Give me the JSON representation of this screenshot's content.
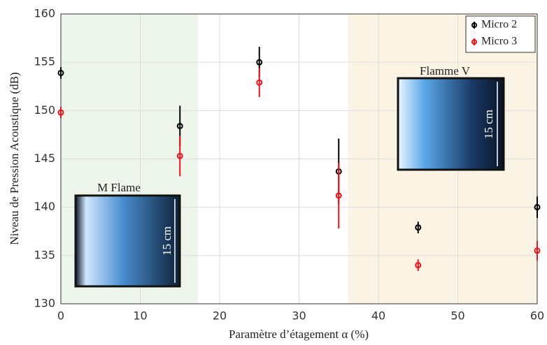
{
  "chart_data": {
    "type": "errorbar",
    "xlabel": "Paramètre d’étagement α (%)",
    "ylabel": "Niveau de Pression Acoustique (dB)",
    "x": [
      0,
      15,
      25,
      35,
      45,
      60
    ],
    "series": [
      {
        "name": "Micro 2",
        "color": "#000000",
        "values": [
          153.9,
          148.4,
          155.0,
          143.7,
          137.9,
          140.0
        ],
        "errors": [
          0.6,
          2.1,
          1.6,
          3.4,
          0.6,
          1.1
        ]
      },
      {
        "name": "Micro 3",
        "color": "#e8141b",
        "values": [
          149.8,
          145.3,
          152.9,
          141.2,
          134.0,
          135.5
        ],
        "errors": [
          0.6,
          2.1,
          1.5,
          3.4,
          0.6,
          1.0
        ]
      }
    ],
    "xlim": [
      0,
      60
    ],
    "ylim": [
      130,
      160
    ],
    "xticks": [
      0,
      10,
      20,
      30,
      40,
      50,
      60
    ],
    "yticks": [
      130,
      135,
      140,
      145,
      150,
      155,
      160
    ],
    "grid": true,
    "legend": "upper-right",
    "regions": [
      {
        "xlim": [
          0,
          17.3
        ],
        "color": "#eef6ec"
      },
      {
        "xlim": [
          36.2,
          60
        ],
        "color": "#fbf3e4"
      }
    ],
    "annotations": [
      "M Flame",
      "15 cm",
      "Flamme V",
      "15 cm"
    ]
  }
}
